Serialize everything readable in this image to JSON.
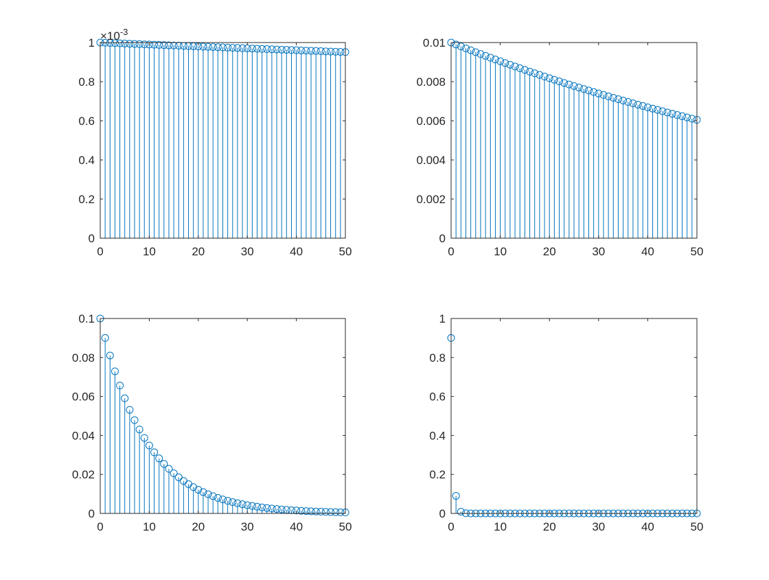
{
  "chart_data": [
    {
      "type": "stem",
      "title": "",
      "xlabel": "",
      "ylabel": "",
      "xlim": [
        0,
        50
      ],
      "ylim": [
        0,
        1
      ],
      "y_exponent_label": "×10",
      "y_exponent": "-3",
      "xticks": [
        "0",
        "10",
        "20",
        "30",
        "40",
        "50"
      ],
      "yticks": [
        "0",
        "0.2",
        "0.4",
        "0.6",
        "0.8",
        "1"
      ],
      "y_unit_note": "values in units of 1e-3",
      "values": [
        1.0,
        0.999,
        0.998,
        0.997,
        0.996,
        0.995,
        0.994,
        0.993,
        0.992,
        0.991,
        0.99,
        0.9891,
        0.9881,
        0.9871,
        0.9861,
        0.9851,
        0.9841,
        0.9831,
        0.9822,
        0.9812,
        0.9802,
        0.9792,
        0.9782,
        0.9773,
        0.9763,
        0.9753,
        0.9743,
        0.9734,
        0.9724,
        0.9714,
        0.9704,
        0.9695,
        0.9685,
        0.9675,
        0.9666,
        0.9656,
        0.9646,
        0.9637,
        0.9627,
        0.9618,
        0.9608,
        0.9598,
        0.9589,
        0.9579,
        0.957,
        0.956,
        0.955,
        0.9541,
        0.9531,
        0.9522,
        0.9512
      ]
    },
    {
      "type": "stem",
      "title": "",
      "xlabel": "",
      "ylabel": "",
      "xlim": [
        0,
        50
      ],
      "ylim": [
        0,
        0.01
      ],
      "xticks": [
        "0",
        "10",
        "20",
        "30",
        "40",
        "50"
      ],
      "yticks": [
        "0",
        "0.002",
        "0.004",
        "0.006",
        "0.008",
        "0.01"
      ],
      "values": [
        0.01,
        0.0099,
        0.009801,
        0.009703,
        0.009606,
        0.00951,
        0.009415,
        0.009321,
        0.009227,
        0.009135,
        0.009044,
        0.008953,
        0.008864,
        0.008775,
        0.008687,
        0.008601,
        0.008515,
        0.008429,
        0.008345,
        0.008262,
        0.008179,
        0.008097,
        0.008016,
        0.007936,
        0.007857,
        0.007778,
        0.0077,
        0.007623,
        0.007547,
        0.007472,
        0.007397,
        0.007323,
        0.00725,
        0.007177,
        0.007106,
        0.007034,
        0.006964,
        0.006894,
        0.006826,
        0.006757,
        0.00669,
        0.006623,
        0.006557,
        0.006491,
        0.006426,
        0.006362,
        0.006298,
        0.006235,
        0.006173,
        0.006111,
        0.00605
      ]
    },
    {
      "type": "stem",
      "title": "",
      "xlabel": "",
      "ylabel": "",
      "xlim": [
        0,
        50
      ],
      "ylim": [
        0,
        0.1
      ],
      "xticks": [
        "0",
        "10",
        "20",
        "30",
        "40",
        "50"
      ],
      "yticks": [
        "0",
        "0.02",
        "0.04",
        "0.06",
        "0.08",
        "0.1"
      ],
      "values": [
        0.1,
        0.09,
        0.081,
        0.0729,
        0.06561,
        0.05905,
        0.05314,
        0.04783,
        0.04305,
        0.03874,
        0.03487,
        0.03138,
        0.02824,
        0.02542,
        0.02288,
        0.02059,
        0.01853,
        0.01668,
        0.01501,
        0.01351,
        0.01216,
        0.01094,
        0.00985,
        0.00886,
        0.00798,
        0.00718,
        0.00646,
        0.00581,
        0.00523,
        0.00471,
        0.00424,
        0.00382,
        0.00343,
        0.00309,
        0.00278,
        0.0025,
        0.00225,
        0.00203,
        0.00182,
        0.00164,
        0.00148,
        0.00133,
        0.0012,
        0.00108,
        0.00097,
        0.00087,
        0.00079,
        0.00071,
        0.00064,
        0.00057,
        0.00052
      ]
    },
    {
      "type": "stem",
      "title": "",
      "xlabel": "",
      "ylabel": "",
      "xlim": [
        0,
        50
      ],
      "ylim": [
        0,
        1
      ],
      "xticks": [
        "0",
        "10",
        "20",
        "30",
        "40",
        "50"
      ],
      "yticks": [
        "0",
        "0.2",
        "0.4",
        "0.6",
        "0.8",
        "1"
      ],
      "values": [
        0.9,
        0.09,
        0.009,
        0.0009,
        9e-05,
        9e-06,
        9e-07,
        9e-08,
        9e-09,
        9e-10,
        9e-11,
        9e-12,
        9e-13,
        9e-14,
        9e-15,
        9e-16,
        9e-17,
        9e-18,
        9e-19,
        9e-20,
        9e-21,
        9e-22,
        9e-23,
        9e-24,
        9e-25,
        9e-26,
        9e-27,
        9e-28,
        9e-29,
        9e-30,
        9e-31,
        9e-32,
        9e-33,
        9e-34,
        9e-35,
        9e-36,
        9e-37,
        9e-38,
        9e-39,
        9e-40,
        9e-41,
        9e-42,
        9e-43,
        9e-44,
        9e-45,
        9e-46,
        9e-47,
        9e-48,
        9e-49,
        9e-50,
        9e-51
      ]
    }
  ],
  "colors": {
    "series": "#0072BD",
    "axis": "#262626"
  }
}
